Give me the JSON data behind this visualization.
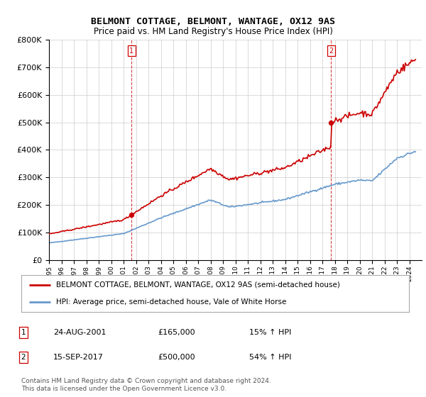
{
  "title": "BELMONT COTTAGE, BELMONT, WANTAGE, OX12 9AS",
  "subtitle": "Price paid vs. HM Land Registry's House Price Index (HPI)",
  "legend_line1": "BELMONT COTTAGE, BELMONT, WANTAGE, OX12 9AS (semi-detached house)",
  "legend_line2": "HPI: Average price, semi-detached house, Vale of White Horse",
  "footnote": "Contains HM Land Registry data © Crown copyright and database right 2024.\nThis data is licensed under the Open Government Licence v3.0.",
  "table": [
    {
      "num": "1",
      "date": "24-AUG-2001",
      "price": "£165,000",
      "hpi": "15% ↑ HPI"
    },
    {
      "num": "2",
      "date": "15-SEP-2017",
      "price": "£500,000",
      "hpi": "54% ↑ HPI"
    }
  ],
  "transaction1_year": 2001.65,
  "transaction2_year": 2017.71,
  "transaction1_price": 165000,
  "transaction2_price": 500000,
  "ylim": [
    0,
    800000
  ],
  "xlim_start": 1995,
  "xlim_end": 2025,
  "hpi_color": "#6699cc",
  "price_color": "#cc0000",
  "vline_color": "#cc0000",
  "grid_color": "#cccccc",
  "background_color": "#ffffff",
  "hpi_anchors": [
    [
      1995.0,
      62000
    ],
    [
      2001.0,
      96000
    ],
    [
      2004.0,
      153000
    ],
    [
      2008.0,
      218000
    ],
    [
      2009.5,
      192000
    ],
    [
      2014.0,
      220000
    ],
    [
      2018.0,
      275000
    ],
    [
      2020.0,
      290000
    ],
    [
      2021.0,
      287000
    ],
    [
      2023.0,
      370000
    ],
    [
      2024.5,
      395000
    ]
  ]
}
